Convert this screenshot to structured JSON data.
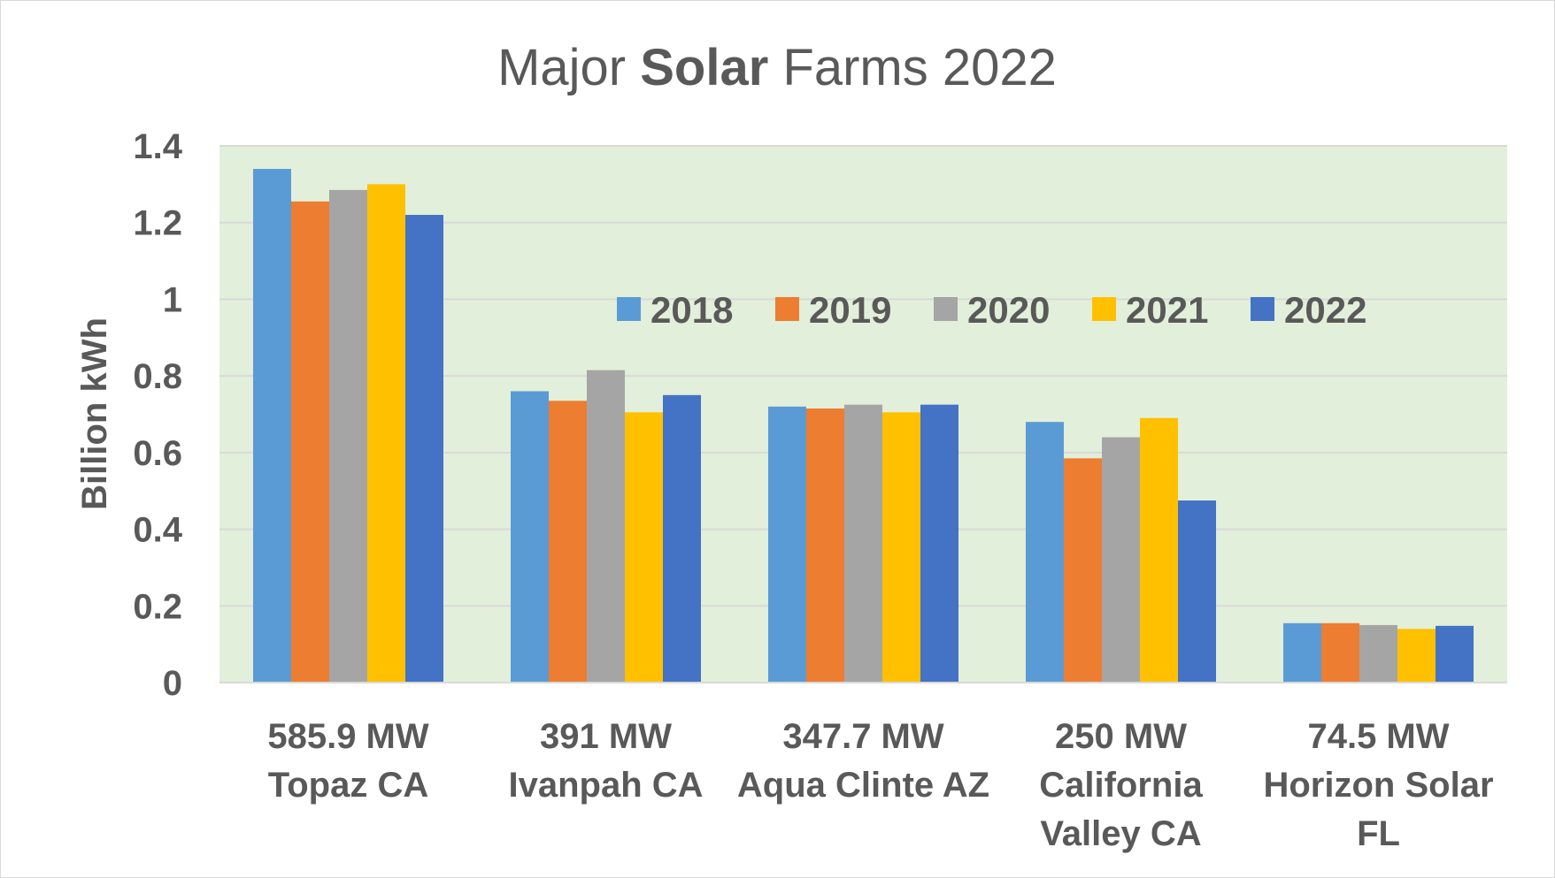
{
  "chart_data": {
    "type": "bar",
    "title_parts": [
      "Major ",
      "Solar",
      " Farms 2022"
    ],
    "ylabel": "Billion kWh",
    "ylim": [
      0,
      1.4
    ],
    "yticks": [
      "0",
      "0.2",
      "0.4",
      "0.6",
      "0.8",
      "1",
      "1.2",
      "1.4"
    ],
    "grid": true,
    "legend_position": "top-right",
    "plot_background": "#e2efda",
    "categories": [
      [
        "585.9 MW",
        "Topaz CA"
      ],
      [
        "391 MW",
        "Ivanpah CA"
      ],
      [
        "347.7 MW",
        "Aqua Clinte AZ"
      ],
      [
        "250 MW",
        "California",
        "Valley CA"
      ],
      [
        "74.5 MW",
        "Horizon Solar",
        "FL"
      ]
    ],
    "series": [
      {
        "name": "2018",
        "color": "#5b9bd5",
        "values": [
          1.34,
          0.76,
          0.72,
          0.68,
          0.155
        ]
      },
      {
        "name": "2019",
        "color": "#ed7d31",
        "values": [
          1.255,
          0.735,
          0.715,
          0.585,
          0.155
        ]
      },
      {
        "name": "2020",
        "color": "#a5a5a5",
        "values": [
          1.285,
          0.815,
          0.725,
          0.64,
          0.15
        ]
      },
      {
        "name": "2021",
        "color": "#ffc000",
        "values": [
          1.3,
          0.705,
          0.705,
          0.69,
          0.14
        ]
      },
      {
        "name": "2022",
        "color": "#4472c4",
        "values": [
          1.22,
          0.75,
          0.725,
          0.475,
          0.148
        ]
      }
    ]
  }
}
